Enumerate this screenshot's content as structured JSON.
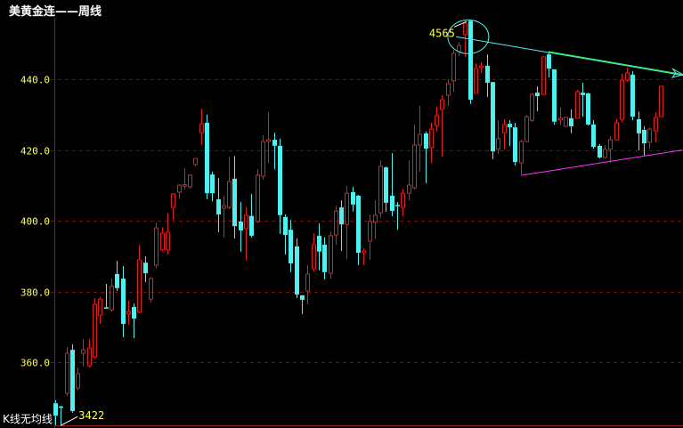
{
  "chart_data": {
    "type": "candlestick",
    "title": "美黄金连——周线",
    "footer_label": "K线无均线",
    "ylim": [
      339,
      461
    ],
    "y_ticks": [
      "440.0",
      "420.0",
      "400.0",
      "380.0",
      "360.0"
    ],
    "y_tick_values": [
      440,
      420,
      400,
      380,
      360
    ],
    "grid": "horizontal dashed",
    "colors": {
      "up": "#e01e1e",
      "down": "#4ff0f0",
      "grid": "#7a1010",
      "axis": "#8c1a1a",
      "tick_text": "#ffff55",
      "resistance": "#4ff0f0",
      "resistance_highlight": "#33ff33",
      "support": "#ff33ff"
    },
    "candle_fields": [
      "open",
      "high",
      "low",
      "close"
    ],
    "candles": [
      [
        348.5,
        349.3,
        342.3,
        345.0
      ],
      [
        347.6,
        347.8,
        342.2,
        347.4
      ],
      [
        351.3,
        364.4,
        350.5,
        362.6
      ],
      [
        363.6,
        365.1,
        345.8,
        346.3
      ],
      [
        352.8,
        358.6,
        352.1,
        356.8
      ],
      [
        362.6,
        366.6,
        358.8,
        363.6
      ],
      [
        359.1,
        366.6,
        358.6,
        364.1
      ],
      [
        361.6,
        378.2,
        361.1,
        376.4
      ],
      [
        373.4,
        378.6,
        370.9,
        377.9
      ],
      [
        375.6,
        382.2,
        375.2,
        375.2
      ],
      [
        374.9,
        383.7,
        374.4,
        381.5
      ],
      [
        385.0,
        388.7,
        380.2,
        381.0
      ],
      [
        383.7,
        387.2,
        367.1,
        370.9
      ],
      [
        373.7,
        377.4,
        370.7,
        374.4
      ],
      [
        375.7,
        376.7,
        366.9,
        372.4
      ],
      [
        374.2,
        393.3,
        373.9,
        389.0
      ],
      [
        388.2,
        390.0,
        382.7,
        385.2
      ],
      [
        377.9,
        384.2,
        376.9,
        383.7
      ],
      [
        387.5,
        399.5,
        386.5,
        398.0
      ],
      [
        391.8,
        398.3,
        391.3,
        396.5
      ],
      [
        391.8,
        402.3,
        390.5,
        396.8
      ],
      [
        403.8,
        407.8,
        400.3,
        407.6
      ],
      [
        408.1,
        410.3,
        406.3,
        410.1
      ],
      [
        409.8,
        414.9,
        408.8,
        410.2
      ],
      [
        409.6,
        413.2,
        409.1,
        412.9
      ],
      [
        415.9,
        417.6,
        415.4,
        417.6
      ],
      [
        424.9,
        431.7,
        421.4,
        427.4
      ],
      [
        427.7,
        430.0,
        406.1,
        407.8
      ],
      [
        413.1,
        413.9,
        405.5,
        407.8
      ],
      [
        406.1,
        412.1,
        396.8,
        401.8
      ],
      [
        403.6,
        407.1,
        395.3,
        404.3
      ],
      [
        403.8,
        418.1,
        403.3,
        411.1
      ],
      [
        411.9,
        418.3,
        395.0,
        398.5
      ],
      [
        399.8,
        405.3,
        391.3,
        397.3
      ],
      [
        397.8,
        403.8,
        388.7,
        401.6
      ],
      [
        401.4,
        407.6,
        395.3,
        395.8
      ],
      [
        399.8,
        414.6,
        399.3,
        412.9
      ],
      [
        412.6,
        424.2,
        411.6,
        422.4
      ],
      [
        422.4,
        430.7,
        416.4,
        422.9
      ],
      [
        422.9,
        424.9,
        414.6,
        421.2
      ],
      [
        421.2,
        423.2,
        396.3,
        401.6
      ],
      [
        401.1,
        401.8,
        390.5,
        396.0
      ],
      [
        397.5,
        400.3,
        385.5,
        388.0
      ],
      [
        392.8,
        395.0,
        378.2,
        379.2
      ],
      [
        379.0,
        379.0,
        373.7,
        377.7
      ],
      [
        380.2,
        387.5,
        376.4,
        385.0
      ],
      [
        386.5,
        396.5,
        385.7,
        393.3
      ],
      [
        395.8,
        399.3,
        386.0,
        391.3
      ],
      [
        393.3,
        395.3,
        383.5,
        385.5
      ],
      [
        385.2,
        397.0,
        383.7,
        395.8
      ],
      [
        396.0,
        404.3,
        393.3,
        402.8
      ],
      [
        403.8,
        405.8,
        391.5,
        399.0
      ],
      [
        399.0,
        409.8,
        389.2,
        407.8
      ],
      [
        408.1,
        409.6,
        402.6,
        404.6
      ],
      [
        407.1,
        407.3,
        387.5,
        391.0
      ],
      [
        391.0,
        392.3,
        387.5,
        391.5
      ],
      [
        394.3,
        401.8,
        389.0,
        399.8
      ],
      [
        399.6,
        405.8,
        394.8,
        401.6
      ],
      [
        402.3,
        417.1,
        400.8,
        415.4
      ],
      [
        415.1,
        415.3,
        402.6,
        405.1
      ],
      [
        407.1,
        419.1,
        401.3,
        402.8
      ],
      [
        404.5,
        405.3,
        397.5,
        404.1
      ],
      [
        403.8,
        409.1,
        401.3,
        407.8
      ],
      [
        407.8,
        417.1,
        405.8,
        410.1
      ],
      [
        409.3,
        427.2,
        408.8,
        421.4
      ],
      [
        421.4,
        432.5,
        413.9,
        424.4
      ],
      [
        424.7,
        425.2,
        410.6,
        420.4
      ],
      [
        420.7,
        427.7,
        416.4,
        425.9
      ],
      [
        426.9,
        432.2,
        425.2,
        429.7
      ],
      [
        431.5,
        435.5,
        418.1,
        434.2
      ],
      [
        435.5,
        440.0,
        432.5,
        438.7
      ],
      [
        439.5,
        448.3,
        436.5,
        447.3
      ],
      [
        447.8,
        450.5,
        446.5,
        449.5
      ],
      [
        452.6,
        456.6,
        446.3,
        455.8
      ],
      [
        456.5,
        456.5,
        433.0,
        434.2
      ],
      [
        436.0,
        444.5,
        436.0,
        443.0
      ],
      [
        443.3,
        444.8,
        441.8,
        443.7
      ],
      [
        443.8,
        447.0,
        435.0,
        439.0
      ],
      [
        439.2,
        439.2,
        417.4,
        419.6
      ],
      [
        420.2,
        428.4,
        418.9,
        423.2
      ],
      [
        424.9,
        428.7,
        420.2,
        427.2
      ],
      [
        427.4,
        428.4,
        421.2,
        426.4
      ],
      [
        426.4,
        427.7,
        415.6,
        416.6
      ],
      [
        416.4,
        422.9,
        412.6,
        422.4
      ],
      [
        422.4,
        429.9,
        422.2,
        429.4
      ],
      [
        428.4,
        436.2,
        427.9,
        435.7
      ],
      [
        436.2,
        438.0,
        431.0,
        435.2
      ],
      [
        435.7,
        446.5,
        435.5,
        446.3
      ],
      [
        447.0,
        447.8,
        440.5,
        443.0
      ],
      [
        442.8,
        442.8,
        427.2,
        428.0
      ],
      [
        428.5,
        432.0,
        427.0,
        429.0
      ],
      [
        426.7,
        429.2,
        426.7,
        429.2
      ],
      [
        429.0,
        431.5,
        424.7,
        426.7
      ],
      [
        429.0,
        437.0,
        428.9,
        436.5
      ],
      [
        436.2,
        439.0,
        429.4,
        435.5
      ],
      [
        436.0,
        436.2,
        426.9,
        427.2
      ],
      [
        427.2,
        428.4,
        420.4,
        420.9
      ],
      [
        421.2,
        421.7,
        417.6,
        417.9
      ],
      [
        417.9,
        421.4,
        417.6,
        420.2
      ],
      [
        420.2,
        423.9,
        416.4,
        422.9
      ],
      [
        422.9,
        428.7,
        422.7,
        427.7
      ],
      [
        428.7,
        441.5,
        427.9,
        439.7
      ],
      [
        439.7,
        443.3,
        439.2,
        441.8
      ],
      [
        441.3,
        442.3,
        428.4,
        429.4
      ],
      [
        428.7,
        430.9,
        419.9,
        424.7
      ],
      [
        425.7,
        426.7,
        418.4,
        421.9
      ],
      [
        422.2,
        426.4,
        420.4,
        425.9
      ],
      [
        425.4,
        430.7,
        422.2,
        429.2
      ],
      [
        429.4,
        438.0,
        429.4,
        438.0
      ]
    ],
    "annotations": {
      "high_label": "4565",
      "low_label": "3422",
      "high_candle_index": 74,
      "low_candle_index": 1
    },
    "trendlines": [
      {
        "kind": "resistance",
        "from": [
          71.5,
          452.0
        ],
        "to": [
          112.3,
          441.0
        ],
        "arrow": true
      },
      {
        "kind": "support",
        "from": [
          83.3,
          412.9
        ],
        "to": [
          111.9,
          420.0
        ]
      }
    ]
  }
}
